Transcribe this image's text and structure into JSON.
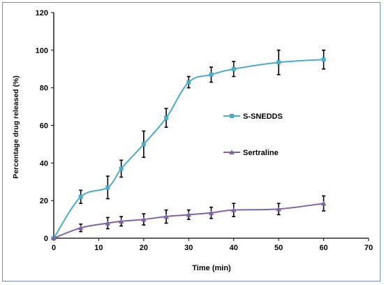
{
  "chart_data": {
    "type": "line",
    "xlabel": "Time (min)",
    "ylabel": "Percentage drug released (%)",
    "xlim": [
      0,
      70
    ],
    "ylim": [
      0,
      120
    ],
    "xticks": [
      0,
      10,
      20,
      30,
      40,
      50,
      60,
      70
    ],
    "yticks": [
      0,
      20,
      40,
      60,
      80,
      100,
      120
    ],
    "grid": false,
    "legend_placement": "right-middle",
    "series": [
      {
        "name": "S-SNEDDS",
        "color": "#4bacc6",
        "marker": "square",
        "x": [
          0,
          6,
          12,
          15,
          20,
          25,
          30,
          35,
          40,
          50,
          60
        ],
        "y": [
          0,
          22,
          27,
          37,
          50,
          64,
          83,
          87,
          90,
          93.5,
          95
        ],
        "err": [
          0,
          3.5,
          6,
          4.5,
          7,
          5,
          3,
          4,
          4,
          6.5,
          5
        ]
      },
      {
        "name": "Sertraline",
        "color": "#8064a2",
        "marker": "triangle",
        "x": [
          0,
          6,
          12,
          15,
          20,
          25,
          30,
          35,
          40,
          50,
          60
        ],
        "y": [
          0,
          5.5,
          8,
          9,
          10,
          11.5,
          12.5,
          13.5,
          15,
          15.5,
          18.5
        ],
        "err": [
          0,
          2,
          3,
          2.5,
          3,
          3.5,
          2.5,
          3,
          3.5,
          3,
          4
        ]
      }
    ]
  }
}
